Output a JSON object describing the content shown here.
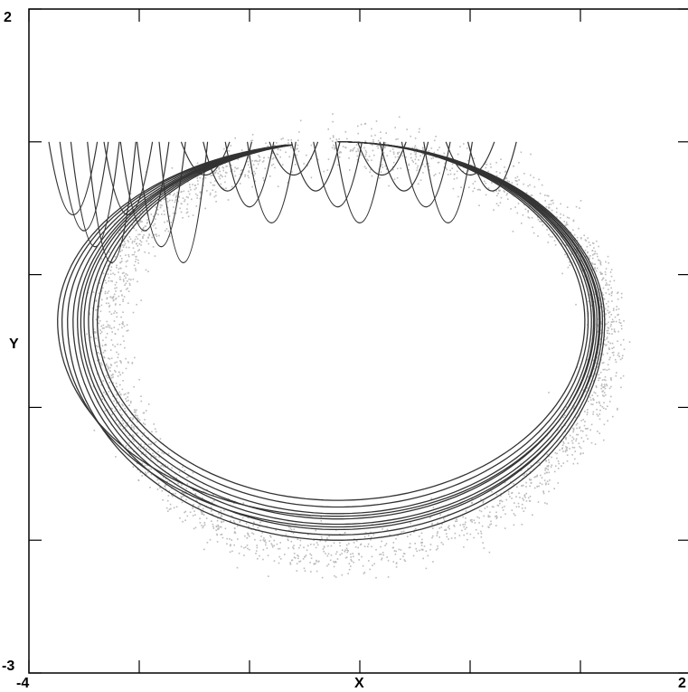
{
  "chart_data": {
    "type": "line",
    "title": "",
    "xlabel": "X",
    "ylabel": "Y",
    "xlim": [
      -4,
      2
    ],
    "ylim": [
      -3,
      2
    ],
    "x_tick_labels": [
      "-4",
      "2"
    ],
    "y_tick_labels": [
      "2",
      "-3"
    ],
    "x_ticks": [
      -4,
      -3,
      -2,
      -1,
      0,
      1,
      2
    ],
    "y_ticks": [
      -3,
      -2,
      -1,
      0,
      1,
      2
    ],
    "grid": false,
    "series": [
      {
        "style": "dark trajectory lines (many overlapping loops)",
        "color": "#333333",
        "loop_shape": {
          "top_y": 1.0,
          "right_x": 1.2,
          "bottom_y": -2.0,
          "left_x": -3.6,
          "center_x": -1.2,
          "center_y": -0.35
        },
        "loop_variants": [
          {
            "right_x": 1.04,
            "bottom_y": -1.7,
            "left_x": -3.38
          },
          {
            "right_x": 1.07,
            "bottom_y": -1.75,
            "left_x": -3.42
          },
          {
            "right_x": 1.1,
            "bottom_y": -1.8,
            "left_x": -3.46
          },
          {
            "right_x": 1.12,
            "bottom_y": -1.84,
            "left_x": -3.5
          },
          {
            "right_x": 1.15,
            "bottom_y": -1.88,
            "left_x": -3.53
          },
          {
            "right_x": 1.17,
            "bottom_y": -1.92,
            "left_x": -3.56
          },
          {
            "right_x": 1.2,
            "bottom_y": -1.96,
            "left_x": -3.6
          },
          {
            "right_x": 1.22,
            "bottom_y": -2.0,
            "left_x": -3.65
          },
          {
            "right_x": 1.18,
            "bottom_y": -1.9,
            "left_x": -3.7
          },
          {
            "right_x": 1.13,
            "bottom_y": -1.82,
            "left_x": -3.74
          }
        ],
        "top_spike_x": [
          -3.6,
          -3.5,
          -3.4,
          -3.25,
          -3.1,
          -2.95,
          -2.8,
          -2.6,
          -2.4,
          -2.2,
          -2.0,
          -1.8,
          -1.6,
          -1.4,
          -1.2,
          -1.0,
          -0.8,
          -0.6,
          -0.4,
          -0.2,
          0.0,
          0.2
        ]
      },
      {
        "style": "light grey scattered point cloud (noisy attractor)",
        "color": "#bbbbbb",
        "around_loop": true
      }
    ]
  }
}
